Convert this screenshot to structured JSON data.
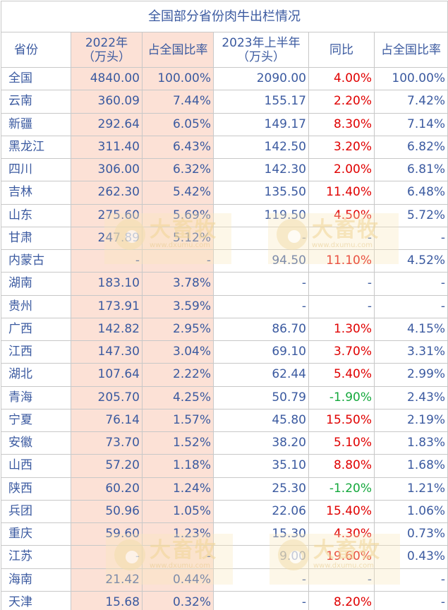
{
  "title": "全国部分省份肉牛出栏情况",
  "headers": [
    "省份",
    "2022年\n（万头）",
    "占全国比率",
    "2023年上半年\n（万头）",
    "同比",
    "占全国比率"
  ],
  "rows": [
    [
      "全国",
      "4840.00",
      "100.00%",
      "2090.00",
      "4.00%",
      "100.00%"
    ],
    [
      "云南",
      "360.09",
      "7.44%",
      "155.17",
      "2.20%",
      "7.42%"
    ],
    [
      "新疆",
      "292.64",
      "6.05%",
      "149.17",
      "8.30%",
      "7.14%"
    ],
    [
      "黑龙江",
      "311.40",
      "6.43%",
      "142.50",
      "3.20%",
      "6.82%"
    ],
    [
      "四川",
      "306.00",
      "6.32%",
      "142.30",
      "2.00%",
      "6.81%"
    ],
    [
      "吉林",
      "262.30",
      "5.42%",
      "135.50",
      "11.40%",
      "6.48%"
    ],
    [
      "山东",
      "275.60",
      "5.69%",
      "119.50",
      "4.50%",
      "5.72%"
    ],
    [
      "甘肃",
      "247.89",
      "5.12%",
      "-",
      "-",
      "-"
    ],
    [
      "内蒙古",
      "-",
      "-",
      "94.50",
      "11.10%",
      "4.52%"
    ],
    [
      "湖南",
      "183.10",
      "3.78%",
      "-",
      "-",
      "-"
    ],
    [
      "贵州",
      "173.91",
      "3.59%",
      "-",
      "-",
      "-"
    ],
    [
      "广西",
      "142.82",
      "2.95%",
      "86.70",
      "1.30%",
      "4.15%"
    ],
    [
      "江西",
      "147.30",
      "3.04%",
      "69.10",
      "3.70%",
      "3.31%"
    ],
    [
      "湖北",
      "107.64",
      "2.22%",
      "62.44",
      "5.40%",
      "2.99%"
    ],
    [
      "青海",
      "205.70",
      "4.25%",
      "50.79",
      "-1.90%",
      "2.43%"
    ],
    [
      "宁夏",
      "76.14",
      "1.57%",
      "45.80",
      "15.50%",
      "2.19%"
    ],
    [
      "安徽",
      "73.70",
      "1.52%",
      "38.20",
      "5.10%",
      "1.83%"
    ],
    [
      "山西",
      "57.20",
      "1.18%",
      "35.10",
      "8.80%",
      "1.68%"
    ],
    [
      "陕西",
      "60.20",
      "1.24%",
      "25.30",
      "-1.20%",
      "1.21%"
    ],
    [
      "兵团",
      "50.96",
      "1.05%",
      "22.06",
      "15.40%",
      "1.06%"
    ],
    [
      "重庆",
      "59.60",
      "1.23%",
      "15.30",
      "4.30%",
      "0.73%"
    ],
    [
      "江苏",
      "-",
      "-",
      "9.00",
      "19.60%",
      "0.43%"
    ],
    [
      "海南",
      "21.42",
      "0.44%",
      "-",
      "-",
      "-"
    ],
    [
      "天津",
      "15.68",
      "0.32%",
      "-",
      "8.20%",
      "-"
    ]
  ],
  "watermark": {
    "name": "大畜牧",
    "url": "www.dxumu.com"
  },
  "colors": {
    "text": "#3b5aa0",
    "positive": "#e00000",
    "negative": "#14a83c",
    "highlight_column": "#fce1d6",
    "border": "#c8c8c8"
  }
}
